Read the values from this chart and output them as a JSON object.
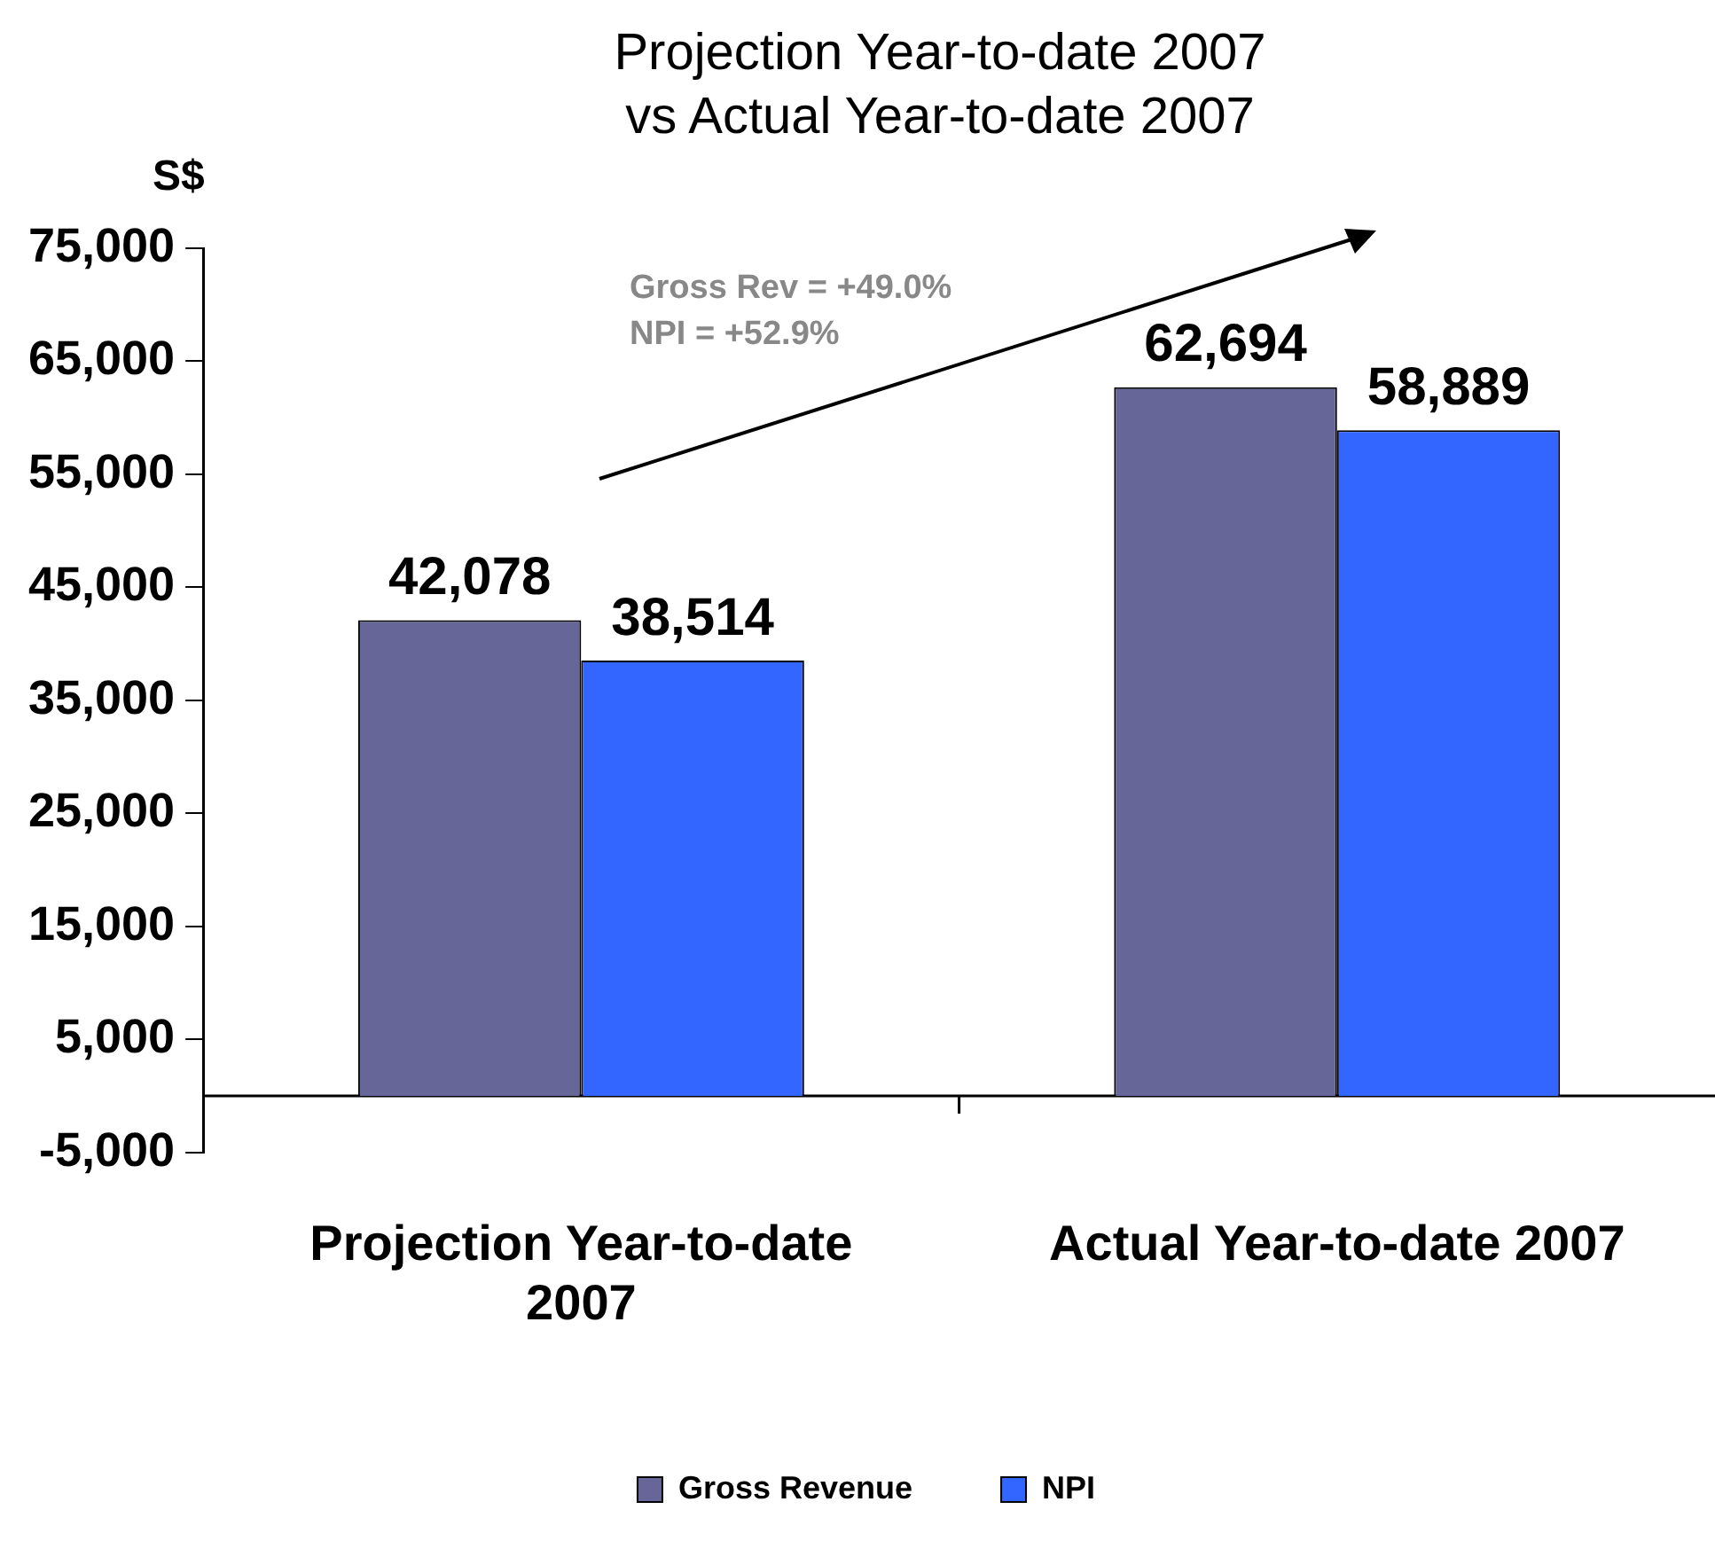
{
  "chart_data": {
    "type": "bar",
    "title": "Projection Year-to-date 2007\nvs Actual Year-to-date 2007",
    "ylabel": "S$",
    "categories": [
      "Projection Year-to-date 2007",
      "Actual Year-to-date 2007"
    ],
    "series": [
      {
        "name": "Gross Revenue",
        "color": "#666699",
        "values": [
          42078,
          62694
        ],
        "value_labels": [
          "42,078",
          "62,694"
        ]
      },
      {
        "name": "NPI",
        "color": "#3366ff",
        "values": [
          38514,
          58889
        ],
        "value_labels": [
          "38,514",
          "58,889"
        ]
      }
    ],
    "ylim": [
      -5000,
      75000
    ],
    "yticks": [
      {
        "value": -5000,
        "label": "-5,000"
      },
      {
        "value": 5000,
        "label": "5,000"
      },
      {
        "value": 15000,
        "label": "15,000"
      },
      {
        "value": 25000,
        "label": "25,000"
      },
      {
        "value": 35000,
        "label": "35,000"
      },
      {
        "value": 45000,
        "label": "45,000"
      },
      {
        "value": 55000,
        "label": "55,000"
      },
      {
        "value": 65000,
        "label": "65,000"
      },
      {
        "value": 75000,
        "label": "75,000"
      }
    ],
    "annotations": [
      "Gross Rev = +49.0%",
      "NPI = +52.9%"
    ],
    "grid": false,
    "legend": "bottom"
  }
}
